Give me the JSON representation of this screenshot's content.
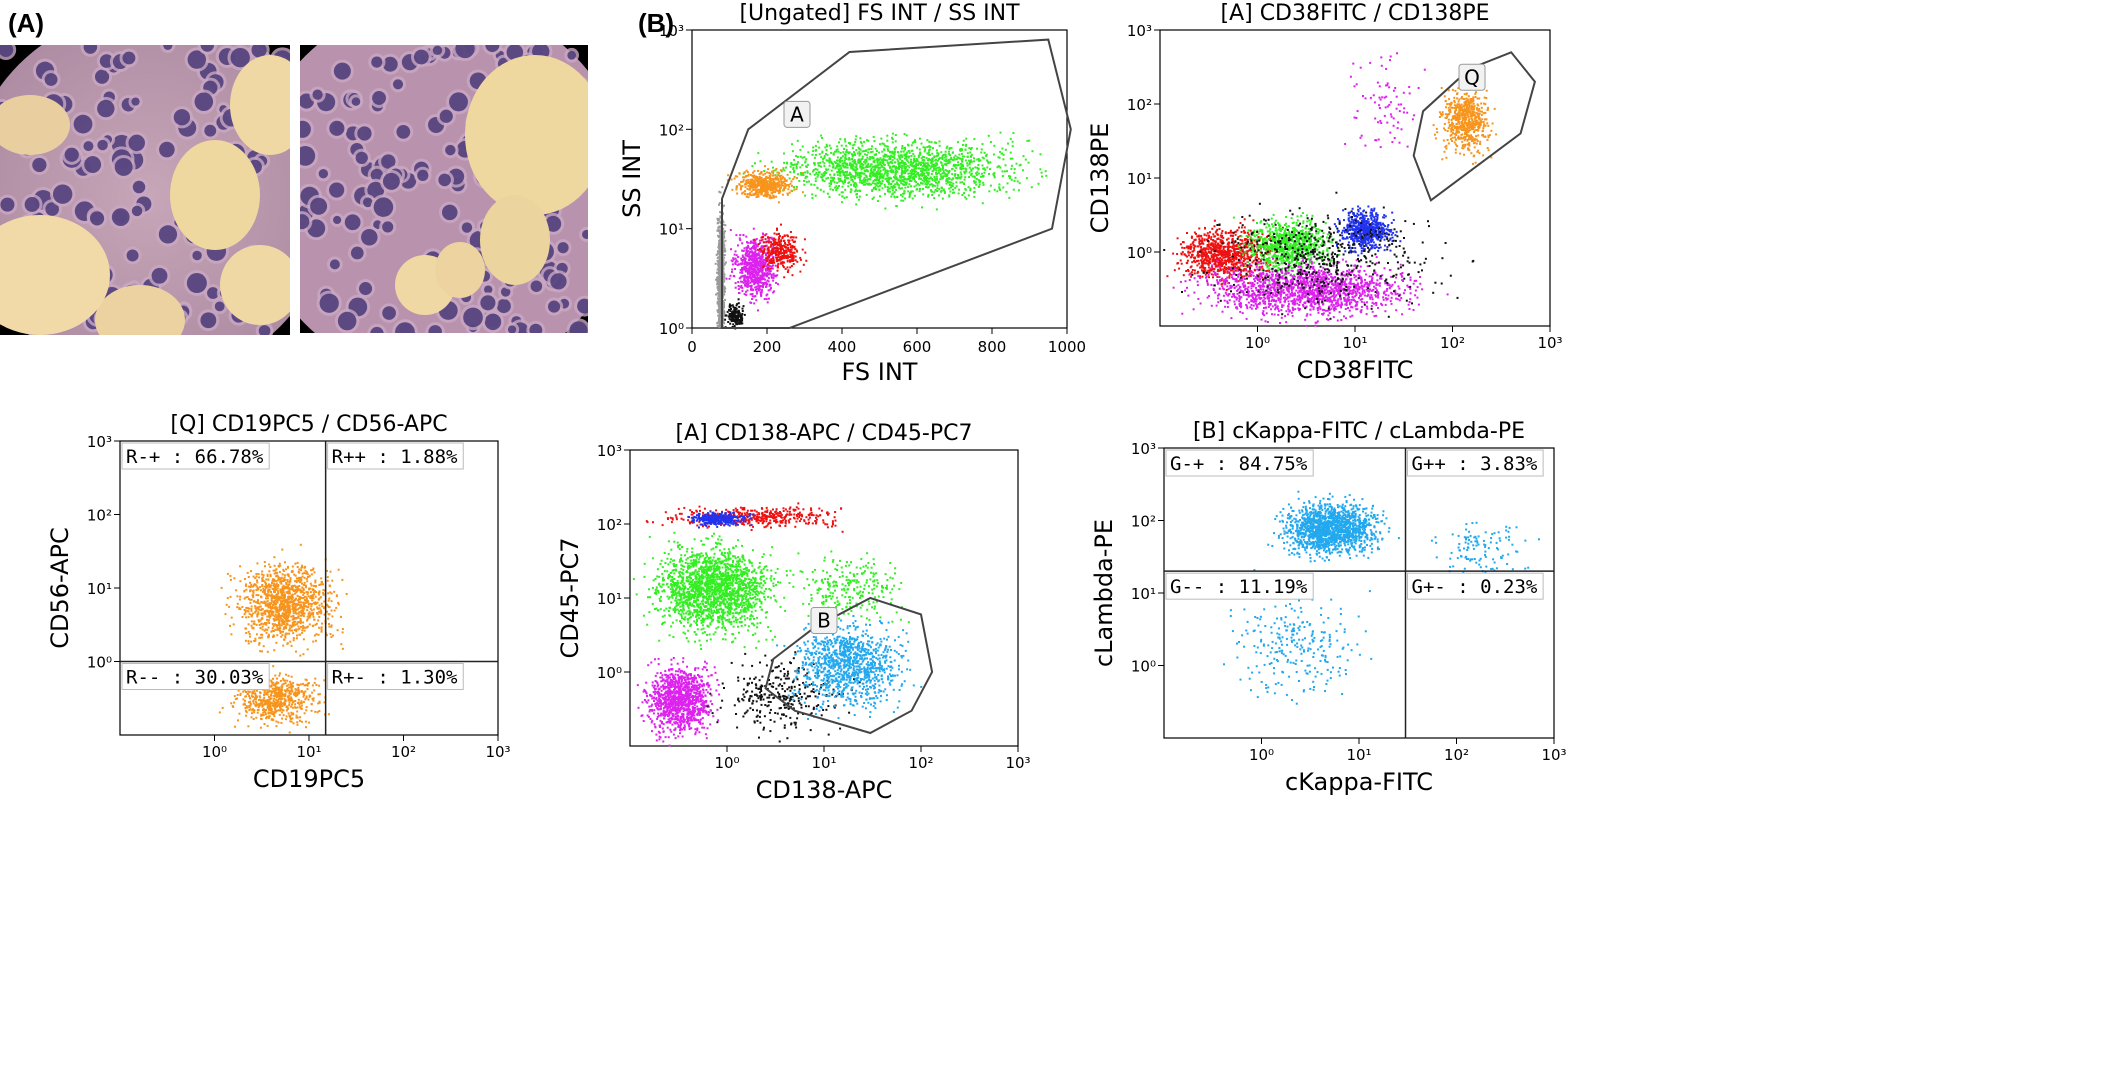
{
  "figure": {
    "label_a": "(A)",
    "label_b": "(B)"
  },
  "micrographs": [
    {
      "name": "micrograph-left"
    },
    {
      "name": "micrograph-right"
    }
  ],
  "colors": {
    "orange": "#f7941d",
    "green": "#33ee22",
    "magenta": "#dd22ee",
    "red": "#ee1111",
    "blue": "#2233ee",
    "black": "#111111",
    "gray": "#9a9a9a",
    "cyan": "#22a8ee"
  },
  "chart_data": [
    {
      "id": "p1",
      "type": "scatter",
      "title": "[Ungated] FS INT / SS INT",
      "xlabel": "FS INT",
      "ylabel": "SS INT",
      "x_scale": "linear",
      "y_scale": "log",
      "xlim": [
        0,
        1000
      ],
      "ylim": [
        1,
        1000
      ],
      "x_ticks": [
        "0",
        "200",
        "400",
        "600",
        "800",
        "1000"
      ],
      "y_ticks": [
        "10⁰",
        "10¹",
        "10²",
        "10³"
      ],
      "gates": [
        {
          "label": "A",
          "points": [
            [
              80,
              1
            ],
            [
              260,
              1
            ],
            [
              960,
              10
            ],
            [
              1010,
              100
            ],
            [
              950,
              800
            ],
            [
              420,
              600
            ],
            [
              150,
              100
            ],
            [
              80,
              20
            ]
          ]
        }
      ],
      "clusters": [
        {
          "color": "gray",
          "x": [
            60,
            90
          ],
          "y": [
            0.3,
            30
          ],
          "n": 900
        },
        {
          "color": "green",
          "x": [
            100,
            1000
          ],
          "y": [
            15,
            110
          ],
          "n": 1700
        },
        {
          "color": "orange",
          "x": [
            80,
            300
          ],
          "y": [
            18,
            45
          ],
          "n": 500
        },
        {
          "color": "magenta",
          "x": [
            80,
            250
          ],
          "y": [
            1.5,
            12
          ],
          "n": 700
        },
        {
          "color": "red",
          "x": [
            150,
            320
          ],
          "y": [
            3,
            12
          ],
          "n": 300
        },
        {
          "color": "black",
          "x": [
            80,
            150
          ],
          "y": [
            0.9,
            2
          ],
          "n": 150
        }
      ]
    },
    {
      "id": "p2",
      "type": "scatter",
      "title": "[A] CD38FITC / CD138PE",
      "xlabel": "CD38FITC",
      "ylabel": "CD138PE",
      "x_scale": "log",
      "y_scale": "log",
      "xlim": [
        0.1,
        1000
      ],
      "ylim": [
        0.1,
        1000
      ],
      "x_ticks": [
        "10⁰",
        "10¹",
        "10²",
        "10³"
      ],
      "y_ticks": [
        "10⁰",
        "10¹",
        "10²",
        "10³"
      ],
      "gates": [
        {
          "label": "Q",
          "points": [
            [
              60,
              5
            ],
            [
              500,
              40
            ],
            [
              700,
              200
            ],
            [
              400,
              500
            ],
            [
              150,
              300
            ],
            [
              50,
              80
            ],
            [
              40,
              20
            ]
          ]
        }
      ],
      "clusters": [
        {
          "color": "red",
          "x": [
            0.1,
            2
          ],
          "y": [
            0.3,
            3
          ],
          "n": 900
        },
        {
          "color": "green",
          "x": [
            0.5,
            8
          ],
          "y": [
            0.4,
            4
          ],
          "n": 800
        },
        {
          "color": "blue",
          "x": [
            5,
            30
          ],
          "y": [
            0.8,
            5
          ],
          "n": 600
        },
        {
          "color": "magenta",
          "x": [
            0.1,
            100
          ],
          "y": [
            0.1,
            1
          ],
          "n": 1600
        },
        {
          "color": "black",
          "x": [
            0.1,
            200
          ],
          "y": [
            0.1,
            8
          ],
          "n": 500
        },
        {
          "color": "orange",
          "x": [
            60,
            300
          ],
          "y": [
            15,
            250
          ],
          "n": 600
        },
        {
          "color": "magenta",
          "x": [
            5,
            80
          ],
          "y": [
            10,
            800
          ],
          "n": 80
        }
      ]
    },
    {
      "id": "p3",
      "type": "scatter",
      "title": "[Q] CD19PC5 / CD56-APC",
      "xlabel": "CD19PC5",
      "ylabel": "CD56-APC",
      "x_scale": "log",
      "y_scale": "log",
      "xlim": [
        0.1,
        1000
      ],
      "ylim": [
        0.1,
        1000
      ],
      "x_ticks": [
        "10⁰",
        "10¹",
        "10²",
        "10³"
      ],
      "y_ticks": [
        "10⁰",
        "10¹",
        "10²",
        "10³"
      ],
      "quadrant": {
        "x": 15,
        "y": 1
      },
      "quadrant_labels": {
        "tl": "R-+ : 66.78%",
        "tr": "R++ : 1.88%",
        "bl": "R-- : 30.03%",
        "br": "R+- : 1.30%"
      },
      "clusters": [
        {
          "color": "orange",
          "x": [
            1,
            30
          ],
          "y": [
            1,
            40
          ],
          "n": 1200
        },
        {
          "color": "orange",
          "x": [
            1,
            20
          ],
          "y": [
            0.1,
            1
          ],
          "n": 600
        }
      ]
    },
    {
      "id": "p4",
      "type": "scatter",
      "title": "[A] CD138-APC / CD45-PC7",
      "xlabel": "CD138-APC",
      "ylabel": "CD45-PC7",
      "x_scale": "log",
      "y_scale": "log",
      "xlim": [
        0.1,
        1000
      ],
      "ylim": [
        0.1,
        1000
      ],
      "x_ticks": [
        "10⁰",
        "10¹",
        "10²",
        "10³"
      ],
      "y_ticks": [
        "10⁰",
        "10¹",
        "10²",
        "10³"
      ],
      "gates": [
        {
          "label": "B",
          "points": [
            [
              3,
              1.5
            ],
            [
              8,
              4
            ],
            [
              30,
              10
            ],
            [
              100,
              6
            ],
            [
              130,
              1
            ],
            [
              80,
              0.3
            ],
            [
              30,
              0.15
            ],
            [
              5,
              0.3
            ],
            [
              2.5,
              0.6
            ]
          ]
        }
      ],
      "clusters": [
        {
          "color": "green",
          "x": [
            0.1,
            5
          ],
          "y": [
            2,
            90
          ],
          "n": 1800
        },
        {
          "color": "red",
          "x": [
            0.1,
            40
          ],
          "y": [
            80,
            200
          ],
          "n": 400
        },
        {
          "color": "blue",
          "x": [
            0.3,
            2
          ],
          "y": [
            90,
            160
          ],
          "n": 300
        },
        {
          "color": "magenta",
          "x": [
            0.1,
            1
          ],
          "y": [
            0.1,
            2
          ],
          "n": 1100
        },
        {
          "color": "black",
          "x": [
            0.5,
            30
          ],
          "y": [
            0.1,
            2.5
          ],
          "n": 300
        },
        {
          "color": "cyan",
          "x": [
            3,
            100
          ],
          "y": [
            0.2,
            8
          ],
          "n": 1000
        },
        {
          "color": "green",
          "x": [
            3,
            100
          ],
          "y": [
            3,
            60
          ],
          "n": 250
        }
      ]
    },
    {
      "id": "p5",
      "type": "scatter",
      "title": "[B] cKappa-FITC / cLambda-PE",
      "xlabel": "cKappa-FITC",
      "ylabel": "cLambda-PE",
      "x_scale": "log",
      "y_scale": "log",
      "xlim": [
        0.1,
        1000
      ],
      "ylim": [
        0.1,
        1000
      ],
      "x_ticks": [
        "10⁰",
        "10¹",
        "10²",
        "10³"
      ],
      "y_ticks": [
        "10⁰",
        "10¹",
        "10²",
        "10³"
      ],
      "quadrant": {
        "x": 30,
        "y": 20
      },
      "quadrant_labels": {
        "tl": "G-+ : 84.75%",
        "tr": "G++ : 3.83%",
        "bl": "G-- : 11.19%",
        "br": "G+- : 0.23%"
      },
      "clusters": [
        {
          "color": "cyan",
          "x": [
            1,
            25
          ],
          "y": [
            25,
            250
          ],
          "n": 1400
        },
        {
          "color": "cyan",
          "x": [
            0.2,
            20
          ],
          "y": [
            0.2,
            20
          ],
          "n": 250
        },
        {
          "color": "cyan",
          "x": [
            40,
            800
          ],
          "y": [
            10,
            150
          ],
          "n": 120
        }
      ]
    }
  ]
}
